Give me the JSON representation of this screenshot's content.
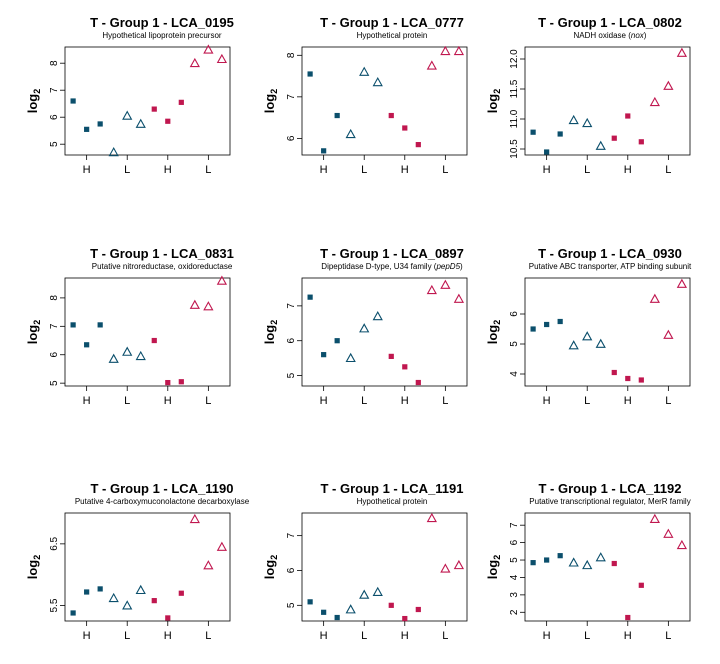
{
  "colors": {
    "H": "#0b4f6c",
    "L": "#c0174f"
  },
  "chart_data": [
    {
      "type": "scatter",
      "title": "T - Group 1 - LCA_0195",
      "subtitle": "Hypothetical lipoprotein precursor",
      "subtitle_italic": "",
      "ylabel": "log2",
      "ylim": [
        4.6,
        8.6
      ],
      "yticks": [
        5,
        6,
        7,
        8
      ],
      "xticks": [
        {
          "label": "H",
          "x": 2
        },
        {
          "label": "L",
          "x": 5
        },
        {
          "label": "H",
          "x": 8
        },
        {
          "label": "L",
          "x": 11
        }
      ],
      "points": [
        {
          "x": 1,
          "y": 6.6,
          "series": "H",
          "shape": "square"
        },
        {
          "x": 2,
          "y": 5.55,
          "series": "H",
          "shape": "square"
        },
        {
          "x": 3,
          "y": 5.75,
          "series": "H",
          "shape": "square"
        },
        {
          "x": 4,
          "y": 4.7,
          "series": "H",
          "shape": "triangle"
        },
        {
          "x": 5,
          "y": 6.05,
          "series": "H",
          "shape": "triangle"
        },
        {
          "x": 6,
          "y": 5.75,
          "series": "H",
          "shape": "triangle"
        },
        {
          "x": 7,
          "y": 6.3,
          "series": "L",
          "shape": "square"
        },
        {
          "x": 8,
          "y": 5.85,
          "series": "L",
          "shape": "square"
        },
        {
          "x": 9,
          "y": 6.55,
          "series": "L",
          "shape": "square"
        },
        {
          "x": 10,
          "y": 8.0,
          "series": "L",
          "shape": "triangle"
        },
        {
          "x": 11,
          "y": 8.5,
          "series": "L",
          "shape": "triangle"
        },
        {
          "x": 12,
          "y": 8.15,
          "series": "L",
          "shape": "triangle"
        }
      ]
    },
    {
      "type": "scatter",
      "title": "T - Group 1 - LCA_0777",
      "subtitle": "Hypothetical protein",
      "subtitle_italic": "",
      "ylabel": "log2",
      "ylim": [
        5.6,
        8.2
      ],
      "yticks": [
        6.0,
        7.0,
        8.0
      ],
      "xticks": [
        {
          "label": "H",
          "x": 2
        },
        {
          "label": "L",
          "x": 5
        },
        {
          "label": "H",
          "x": 8
        },
        {
          "label": "L",
          "x": 11
        }
      ],
      "points": [
        {
          "x": 1,
          "y": 7.55,
          "series": "H",
          "shape": "square"
        },
        {
          "x": 2,
          "y": 5.7,
          "series": "H",
          "shape": "square"
        },
        {
          "x": 3,
          "y": 6.55,
          "series": "H",
          "shape": "square"
        },
        {
          "x": 4,
          "y": 6.1,
          "series": "H",
          "shape": "triangle"
        },
        {
          "x": 5,
          "y": 7.6,
          "series": "H",
          "shape": "triangle"
        },
        {
          "x": 6,
          "y": 7.35,
          "series": "H",
          "shape": "triangle"
        },
        {
          "x": 7,
          "y": 6.55,
          "series": "L",
          "shape": "square"
        },
        {
          "x": 8,
          "y": 6.25,
          "series": "L",
          "shape": "square"
        },
        {
          "x": 9,
          "y": 5.85,
          "series": "L",
          "shape": "square"
        },
        {
          "x": 10,
          "y": 7.75,
          "series": "L",
          "shape": "triangle"
        },
        {
          "x": 11,
          "y": 8.1,
          "series": "L",
          "shape": "triangle"
        },
        {
          "x": 12,
          "y": 8.1,
          "series": "L",
          "shape": "triangle"
        }
      ]
    },
    {
      "type": "scatter",
      "title": "T - Group 1 - LCA_0802",
      "subtitle": "NADH oxidase (",
      "subtitle_italic": "nox",
      "subtitle_end": ")",
      "ylabel": "log2",
      "ylim": [
        10.4,
        12.2
      ],
      "yticks": [
        10.5,
        11.0,
        11.5,
        12.0
      ],
      "xticks": [
        {
          "label": "H",
          "x": 2
        },
        {
          "label": "L",
          "x": 5
        },
        {
          "label": "H",
          "x": 8
        },
        {
          "label": "L",
          "x": 11
        }
      ],
      "points": [
        {
          "x": 1,
          "y": 10.78,
          "series": "H",
          "shape": "square"
        },
        {
          "x": 2,
          "y": 10.45,
          "series": "H",
          "shape": "square"
        },
        {
          "x": 3,
          "y": 10.75,
          "series": "H",
          "shape": "square"
        },
        {
          "x": 4,
          "y": 10.98,
          "series": "H",
          "shape": "triangle"
        },
        {
          "x": 5,
          "y": 10.93,
          "series": "H",
          "shape": "triangle"
        },
        {
          "x": 6,
          "y": 10.55,
          "series": "H",
          "shape": "triangle"
        },
        {
          "x": 7,
          "y": 10.68,
          "series": "L",
          "shape": "square"
        },
        {
          "x": 8,
          "y": 11.05,
          "series": "L",
          "shape": "square"
        },
        {
          "x": 9,
          "y": 10.62,
          "series": "L",
          "shape": "square"
        },
        {
          "x": 10,
          "y": 11.28,
          "series": "L",
          "shape": "triangle"
        },
        {
          "x": 11,
          "y": 11.55,
          "series": "L",
          "shape": "triangle"
        },
        {
          "x": 12,
          "y": 12.1,
          "series": "L",
          "shape": "triangle"
        }
      ]
    },
    {
      "type": "scatter",
      "title": "T - Group 1 - LCA_0831",
      "subtitle": "Putative nitroreductase, oxidoreductase",
      "subtitle_italic": "",
      "ylabel": "log2",
      "ylim": [
        4.9,
        8.7
      ],
      "yticks": [
        5.0,
        6.0,
        7.0,
        8.0
      ],
      "xticks": [
        {
          "label": "H",
          "x": 2
        },
        {
          "label": "L",
          "x": 5
        },
        {
          "label": "H",
          "x": 8
        },
        {
          "label": "L",
          "x": 11
        }
      ],
      "points": [
        {
          "x": 1,
          "y": 7.05,
          "series": "H",
          "shape": "square"
        },
        {
          "x": 2,
          "y": 6.35,
          "series": "H",
          "shape": "square"
        },
        {
          "x": 3,
          "y": 7.05,
          "series": "H",
          "shape": "square"
        },
        {
          "x": 4,
          "y": 5.85,
          "series": "H",
          "shape": "triangle"
        },
        {
          "x": 5,
          "y": 6.1,
          "series": "H",
          "shape": "triangle"
        },
        {
          "x": 6,
          "y": 5.95,
          "series": "H",
          "shape": "triangle"
        },
        {
          "x": 7,
          "y": 6.5,
          "series": "L",
          "shape": "square"
        },
        {
          "x": 8,
          "y": 5.02,
          "series": "L",
          "shape": "square"
        },
        {
          "x": 9,
          "y": 5.05,
          "series": "L",
          "shape": "square"
        },
        {
          "x": 10,
          "y": 7.75,
          "series": "L",
          "shape": "triangle"
        },
        {
          "x": 11,
          "y": 7.7,
          "series": "L",
          "shape": "triangle"
        },
        {
          "x": 12,
          "y": 8.6,
          "series": "L",
          "shape": "triangle"
        }
      ]
    },
    {
      "type": "scatter",
      "title": "T - Group 1 - LCA_0897",
      "subtitle": "Dipeptidase D-type, U34 family (",
      "subtitle_italic": "pepD5",
      "subtitle_end": ")",
      "ylabel": "log2",
      "ylim": [
        4.7,
        7.8
      ],
      "yticks": [
        5.0,
        6.0,
        7.0
      ],
      "xticks": [
        {
          "label": "H",
          "x": 2
        },
        {
          "label": "L",
          "x": 5
        },
        {
          "label": "H",
          "x": 8
        },
        {
          "label": "L",
          "x": 11
        }
      ],
      "points": [
        {
          "x": 1,
          "y": 7.25,
          "series": "H",
          "shape": "square"
        },
        {
          "x": 2,
          "y": 5.6,
          "series": "H",
          "shape": "square"
        },
        {
          "x": 3,
          "y": 6.0,
          "series": "H",
          "shape": "square"
        },
        {
          "x": 4,
          "y": 5.5,
          "series": "H",
          "shape": "triangle"
        },
        {
          "x": 5,
          "y": 6.35,
          "series": "H",
          "shape": "triangle"
        },
        {
          "x": 6,
          "y": 6.7,
          "series": "H",
          "shape": "triangle"
        },
        {
          "x": 7,
          "y": 5.55,
          "series": "L",
          "shape": "square"
        },
        {
          "x": 8,
          "y": 5.25,
          "series": "L",
          "shape": "square"
        },
        {
          "x": 9,
          "y": 4.8,
          "series": "L",
          "shape": "square"
        },
        {
          "x": 10,
          "y": 7.45,
          "series": "L",
          "shape": "triangle"
        },
        {
          "x": 11,
          "y": 7.6,
          "series": "L",
          "shape": "triangle"
        },
        {
          "x": 12,
          "y": 7.2,
          "series": "L",
          "shape": "triangle"
        }
      ]
    },
    {
      "type": "scatter",
      "title": "T - Group 1 - LCA_0930",
      "subtitle": "Putative ABC transporter, ATP binding subunit",
      "subtitle_italic": "",
      "ylabel": "log2",
      "ylim": [
        3.6,
        7.2
      ],
      "yticks": [
        4.0,
        5.0,
        6.0
      ],
      "xticks": [
        {
          "label": "H",
          "x": 2
        },
        {
          "label": "L",
          "x": 5
        },
        {
          "label": "H",
          "x": 8
        },
        {
          "label": "L",
          "x": 11
        }
      ],
      "points": [
        {
          "x": 1,
          "y": 5.5,
          "series": "H",
          "shape": "square"
        },
        {
          "x": 2,
          "y": 5.65,
          "series": "H",
          "shape": "square"
        },
        {
          "x": 3,
          "y": 5.75,
          "series": "H",
          "shape": "square"
        },
        {
          "x": 4,
          "y": 4.95,
          "series": "H",
          "shape": "triangle"
        },
        {
          "x": 5,
          "y": 5.25,
          "series": "H",
          "shape": "triangle"
        },
        {
          "x": 6,
          "y": 5.0,
          "series": "H",
          "shape": "triangle"
        },
        {
          "x": 7,
          "y": 4.05,
          "series": "L",
          "shape": "square"
        },
        {
          "x": 8,
          "y": 3.85,
          "series": "L",
          "shape": "square"
        },
        {
          "x": 9,
          "y": 3.8,
          "series": "L",
          "shape": "square"
        },
        {
          "x": 10,
          "y": 6.5,
          "series": "L",
          "shape": "triangle"
        },
        {
          "x": 11,
          "y": 5.3,
          "series": "L",
          "shape": "triangle"
        },
        {
          "x": 12,
          "y": 7.0,
          "series": "L",
          "shape": "triangle"
        }
      ]
    },
    {
      "type": "scatter",
      "title": "T - Group 1 - LCA_1190",
      "subtitle": "Putative 4-carboxymuconolactone decarboxylase",
      "subtitle_italic": "",
      "ylabel": "log2",
      "ylim": [
        5.25,
        7.0
      ],
      "yticks": [
        5.5,
        6.5
      ],
      "xticks": [
        {
          "label": "H",
          "x": 2
        },
        {
          "label": "L",
          "x": 5
        },
        {
          "label": "H",
          "x": 8
        },
        {
          "label": "L",
          "x": 11
        }
      ],
      "points": [
        {
          "x": 1,
          "y": 5.38,
          "series": "H",
          "shape": "square"
        },
        {
          "x": 2,
          "y": 5.72,
          "series": "H",
          "shape": "square"
        },
        {
          "x": 3,
          "y": 5.77,
          "series": "H",
          "shape": "square"
        },
        {
          "x": 4,
          "y": 5.62,
          "series": "H",
          "shape": "triangle"
        },
        {
          "x": 5,
          "y": 5.5,
          "series": "H",
          "shape": "triangle"
        },
        {
          "x": 6,
          "y": 5.75,
          "series": "H",
          "shape": "triangle"
        },
        {
          "x": 7,
          "y": 5.58,
          "series": "L",
          "shape": "square"
        },
        {
          "x": 8,
          "y": 5.3,
          "series": "L",
          "shape": "square"
        },
        {
          "x": 9,
          "y": 5.7,
          "series": "L",
          "shape": "square"
        },
        {
          "x": 10,
          "y": 6.9,
          "series": "L",
          "shape": "triangle"
        },
        {
          "x": 11,
          "y": 6.15,
          "series": "L",
          "shape": "triangle"
        },
        {
          "x": 12,
          "y": 6.45,
          "series": "L",
          "shape": "triangle"
        }
      ]
    },
    {
      "type": "scatter",
      "title": "T - Group 1 - LCA_1191",
      "subtitle": "Hypothetical protein",
      "subtitle_italic": "",
      "ylabel": "log2",
      "ylim": [
        4.55,
        7.65
      ],
      "yticks": [
        5.0,
        6.0,
        7.0
      ],
      "xticks": [
        {
          "label": "H",
          "x": 2
        },
        {
          "label": "L",
          "x": 5
        },
        {
          "label": "H",
          "x": 8
        },
        {
          "label": "L",
          "x": 11
        }
      ],
      "points": [
        {
          "x": 1,
          "y": 5.1,
          "series": "H",
          "shape": "square"
        },
        {
          "x": 2,
          "y": 4.8,
          "series": "H",
          "shape": "square"
        },
        {
          "x": 3,
          "y": 4.65,
          "series": "H",
          "shape": "square"
        },
        {
          "x": 4,
          "y": 4.88,
          "series": "H",
          "shape": "triangle"
        },
        {
          "x": 5,
          "y": 5.3,
          "series": "H",
          "shape": "triangle"
        },
        {
          "x": 6,
          "y": 5.38,
          "series": "H",
          "shape": "triangle"
        },
        {
          "x": 7,
          "y": 5.0,
          "series": "L",
          "shape": "square"
        },
        {
          "x": 8,
          "y": 4.62,
          "series": "L",
          "shape": "square"
        },
        {
          "x": 9,
          "y": 4.88,
          "series": "L",
          "shape": "square"
        },
        {
          "x": 10,
          "y": 7.5,
          "series": "L",
          "shape": "triangle"
        },
        {
          "x": 11,
          "y": 6.05,
          "series": "L",
          "shape": "triangle"
        },
        {
          "x": 12,
          "y": 6.15,
          "series": "L",
          "shape": "triangle"
        }
      ]
    },
    {
      "type": "scatter",
      "title": "T - Group 1 - LCA_1192",
      "subtitle": "Putative transcriptional regulator, MerR family",
      "subtitle_italic": "",
      "ylabel": "log2",
      "ylim": [
        1.5,
        7.7
      ],
      "yticks": [
        2,
        3,
        4,
        5,
        6,
        7
      ],
      "xticks": [
        {
          "label": "H",
          "x": 2
        },
        {
          "label": "L",
          "x": 5
        },
        {
          "label": "H",
          "x": 8
        },
        {
          "label": "L",
          "x": 11
        }
      ],
      "points": [
        {
          "x": 1,
          "y": 4.85,
          "series": "H",
          "shape": "square"
        },
        {
          "x": 2,
          "y": 5.0,
          "series": "H",
          "shape": "square"
        },
        {
          "x": 3,
          "y": 5.25,
          "series": "H",
          "shape": "square"
        },
        {
          "x": 4,
          "y": 4.85,
          "series": "H",
          "shape": "triangle"
        },
        {
          "x": 5,
          "y": 4.7,
          "series": "H",
          "shape": "triangle"
        },
        {
          "x": 6,
          "y": 5.15,
          "series": "H",
          "shape": "triangle"
        },
        {
          "x": 7,
          "y": 4.8,
          "series": "L",
          "shape": "square"
        },
        {
          "x": 8,
          "y": 1.7,
          "series": "L",
          "shape": "square"
        },
        {
          "x": 9,
          "y": 3.55,
          "series": "L",
          "shape": "square"
        },
        {
          "x": 10,
          "y": 7.35,
          "series": "L",
          "shape": "triangle"
        },
        {
          "x": 11,
          "y": 6.5,
          "series": "L",
          "shape": "triangle"
        },
        {
          "x": 12,
          "y": 5.85,
          "series": "L",
          "shape": "triangle"
        }
      ]
    }
  ]
}
